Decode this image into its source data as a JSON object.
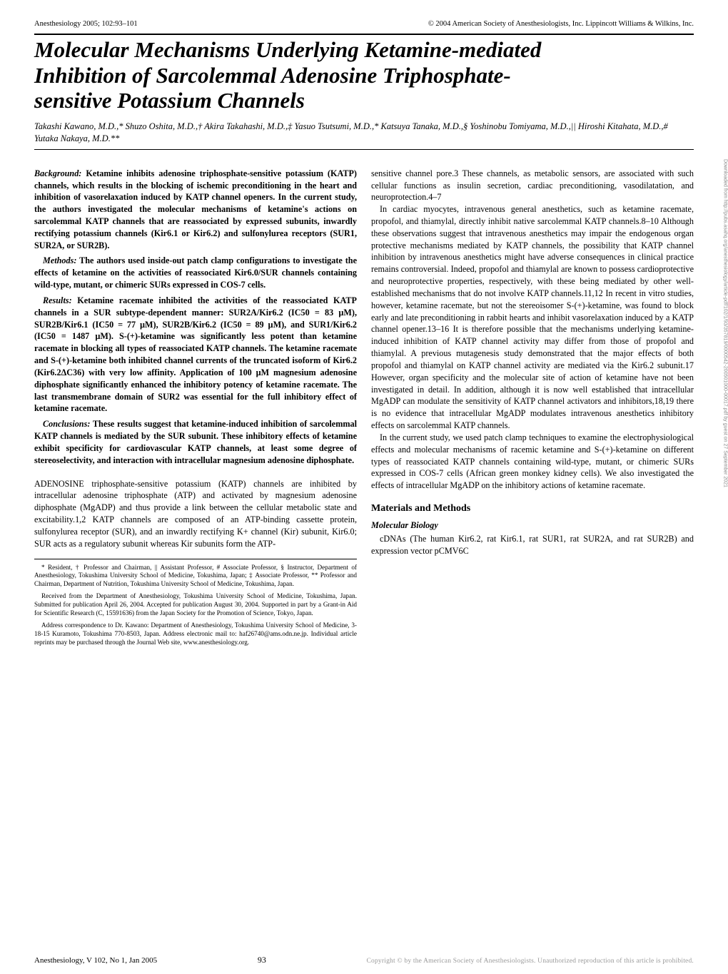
{
  "header": {
    "left": "Anesthesiology 2005; 102:93–101",
    "right": "© 2004 American Society of Anesthesiologists, Inc. Lippincott Williams & Wilkins, Inc."
  },
  "title_lines": [
    "Molecular Mechanisms Underlying Ketamine-mediated",
    "Inhibition of Sarcolemmal Adenosine Triphosphate-",
    "sensitive Potassium Channels"
  ],
  "authors": "Takashi Kawano, M.D.,* Shuzo Oshita, M.D.,† Akira Takahashi, M.D.,‡ Yasuo Tsutsumi, M.D.,* Katsuya Tanaka, M.D.,§ Yoshinobu Tomiyama, M.D.,|| Hiroshi Kitahata, M.D.,# Yutaka Nakaya, M.D.**",
  "abstract": {
    "background_label": "Background:",
    "background": " Ketamine inhibits adenosine triphosphate-sensitive potassium (KATP) channels, which results in the blocking of ischemic preconditioning in the heart and inhibition of vasorelaxation induced by KATP channel openers. In the current study, the authors investigated the molecular mechanisms of ketamine's actions on sarcolemmal KATP channels that are reassociated by expressed subunits, inwardly rectifying potassium channels (Kir6.1 or Kir6.2) and sulfonylurea receptors (SUR1, SUR2A, or SUR2B).",
    "methods_label": "Methods:",
    "methods": " The authors used inside-out patch clamp configurations to investigate the effects of ketamine on the activities of reassociated Kir6.0/SUR channels containing wild-type, mutant, or chimeric SURs expressed in COS-7 cells.",
    "results_label": "Results:",
    "results": " Ketamine racemate inhibited the activities of the reassociated KATP channels in a SUR subtype-dependent manner: SUR2A/Kir6.2 (IC50 = 83 µM), SUR2B/Kir6.1 (IC50 = 77 µM), SUR2B/Kir6.2 (IC50 = 89 µM), and SUR1/Kir6.2 (IC50 = 1487 µM). S-(+)-ketamine was significantly less potent than ketamine racemate in blocking all types of reassociated KATP channels. The ketamine racemate and S-(+)-ketamine both inhibited channel currents of the truncated isoform of Kir6.2 (Kir6.2ΔC36) with very low affinity. Application of 100 µM magnesium adenosine diphosphate significantly enhanced the inhibitory potency of ketamine racemate. The last transmembrane domain of SUR2 was essential for the full inhibitory effect of ketamine racemate.",
    "conclusions_label": "Conclusions:",
    "conclusions": " These results suggest that ketamine-induced inhibition of sarcolemmal KATP channels is mediated by the SUR subunit. These inhibitory effects of ketamine exhibit specificity for cardiovascular KATP channels, at least some degree of stereoselectivity, and interaction with intracellular magnesium adenosine diphosphate."
  },
  "left_body": {
    "p1": "ADENOSINE triphosphate-sensitive potassium (KATP) channels are inhibited by intracellular adenosine triphosphate (ATP) and activated by magnesium adenosine diphosphate (MgADP) and thus provide a link between the cellular metabolic state and excitability.1,2 KATP channels are composed of an ATP-binding cassette protein, sulfonylurea receptor (SUR), and an inwardly rectifying K+ channel (Kir) subunit, Kir6.0; SUR acts as a regulatory subunit whereas Kir subunits form the ATP-"
  },
  "footnotes": {
    "f1": "* Resident, † Professor and Chairman, || Assistant Professor, # Associate Professor, § Instructor, Department of Anesthesiology, Tokushima University School of Medicine, Tokushima, Japan; ‡ Associate Professor, ** Professor and Chairman, Department of Nutrition, Tokushima University School of Medicine, Tokushima, Japan.",
    "f2": "Received from the Department of Anesthesiology, Tokushima University School of Medicine, Tokushima, Japan. Submitted for publication April 26, 2004. Accepted for publication August 30, 2004. Supported in part by a Grant-in Aid for Scientific Research (C, 15591636) from the Japan Society for the Promotion of Science, Tokyo, Japan.",
    "f3": "Address correspondence to Dr. Kawano: Department of Anesthesiology, Tokushima University School of Medicine, 3-18-15 Kuramoto, Tokushima 770-8503, Japan. Address electronic mail to: haf26740@ams.odn.ne.jp. Individual article reprints may be purchased through the Journal Web site, www.anesthesiology.org."
  },
  "right_body": {
    "p1": "sensitive channel pore.3 These channels, as metabolic sensors, are associated with such cellular functions as insulin secretion, cardiac preconditioning, vasodilatation, and neuroprotection.4–7",
    "p2": "In cardiac myocytes, intravenous general anesthetics, such as ketamine racemate, propofol, and thiamylal, directly inhibit native sarcolemmal KATP channels.8–10 Although these observations suggest that intravenous anesthetics may impair the endogenous organ protective mechanisms mediated by KATP channels, the possibility that KATP channel inhibition by intravenous anesthetics might have adverse consequences in clinical practice remains controversial. Indeed, propofol and thiamylal are known to possess cardioprotective and neuroprotective properties, respectively, with these being mediated by other well-established mechanisms that do not involve KATP channels.11,12 In recent in vitro studies, however, ketamine racemate, but not the stereoisomer S-(+)-ketamine, was found to block early and late preconditioning in rabbit hearts and inhibit vasorelaxation induced by a KATP channel opener.13–16 It is therefore possible that the mechanisms underlying ketamine-induced inhibition of KATP channel activity may differ from those of propofol and thiamylal. A previous mutagenesis study demonstrated that the major effects of both propofol and thiamylal on KATP channel activity are mediated via the Kir6.2 subunit.17 However, organ specificity and the molecular site of action of ketamine have not been investigated in detail. In addition, although it is now well established that intracellular MgADP can modulate the sensitivity of KATP channel activators and inhibitors,18,19 there is no evidence that intracellular MgADP modulates intravenous anesthetics inhibitory effects on sarcolemmal KATP channels.",
    "p3": "In the current study, we used patch clamp techniques to examine the electrophysiological effects and molecular mechanisms of racemic ketamine and S-(+)-ketamine on different types of reassociated KATP channels containing wild-type, mutant, or chimeric SURs expressed in COS-7 cells (African green monkey kidney cells). We also investigated the effects of intracellular MgADP on the inhibitory actions of ketamine racemate."
  },
  "sections": {
    "materials": "Materials and Methods",
    "molecular": "Molecular Biology",
    "molecular_p": "cDNAs (The human Kir6.2, rat Kir6.1, rat SUR1, rat SUR2A, and rat SUR2B) and expression vector pCMV6C"
  },
  "footer": {
    "left": "Anesthesiology, V 102, No 1, Jan 2005",
    "page": "93",
    "right": "Copyright © by the American Society of Anesthesiologists. Unauthorized reproduction of this article is prohibited."
  },
  "side": "Downloaded from http://pubs.asahq.org/anesthesiology/article-pdf/102/1/93/357819/0000542-200501000-00017.pdf by guest on 27 September 2021"
}
